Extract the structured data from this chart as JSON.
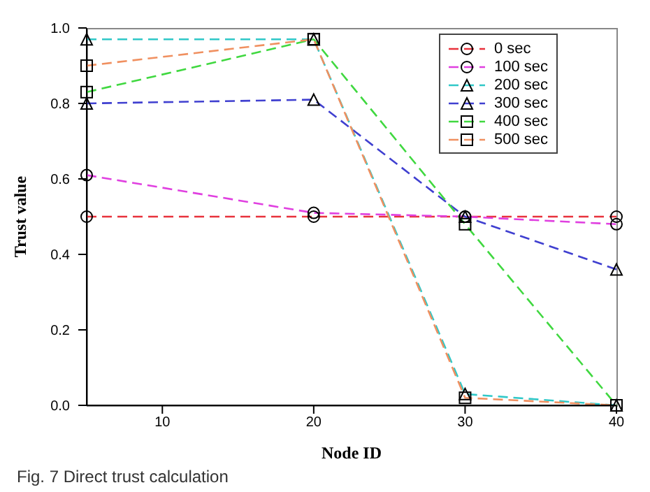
{
  "chart_data": {
    "type": "line",
    "xlabel": "Node ID",
    "ylabel": "Trust value",
    "annotations": [
      "Fig. 7 Direct trust calculation"
    ],
    "x": [
      5,
      20,
      30,
      40
    ],
    "series": [
      {
        "name": "0 sec",
        "color": "#e8323c",
        "marker": "circle",
        "values": [
          0.5,
          0.5,
          0.5,
          0.5
        ]
      },
      {
        "name": "100 sec",
        "color": "#e040e0",
        "marker": "circle",
        "values": [
          0.61,
          0.51,
          0.5,
          0.48
        ]
      },
      {
        "name": "200 sec",
        "color": "#30c8c8",
        "marker": "triangle",
        "values": [
          0.97,
          0.97,
          0.03,
          0.0
        ]
      },
      {
        "name": "300 sec",
        "color": "#4040d0",
        "marker": "triangle",
        "values": [
          0.8,
          0.81,
          0.5,
          0.36
        ]
      },
      {
        "name": "400 sec",
        "color": "#40d840",
        "marker": "square",
        "values": [
          0.83,
          0.97,
          0.48,
          0.0
        ]
      },
      {
        "name": "500 sec",
        "color": "#f09060",
        "marker": "square",
        "values": [
          0.9,
          0.97,
          0.02,
          0.0
        ]
      }
    ],
    "xlim": [
      5,
      40
    ],
    "xticks": [
      10,
      20,
      30,
      40
    ],
    "ylim": [
      0,
      1
    ],
    "yticks": [
      {
        "value": 0,
        "label": "0.0"
      },
      0.2,
      0.4,
      0.6,
      0.8,
      {
        "value": 1,
        "label": "1.0"
      }
    ],
    "grid": false,
    "legend": "top right",
    "line_style": "dashed"
  }
}
